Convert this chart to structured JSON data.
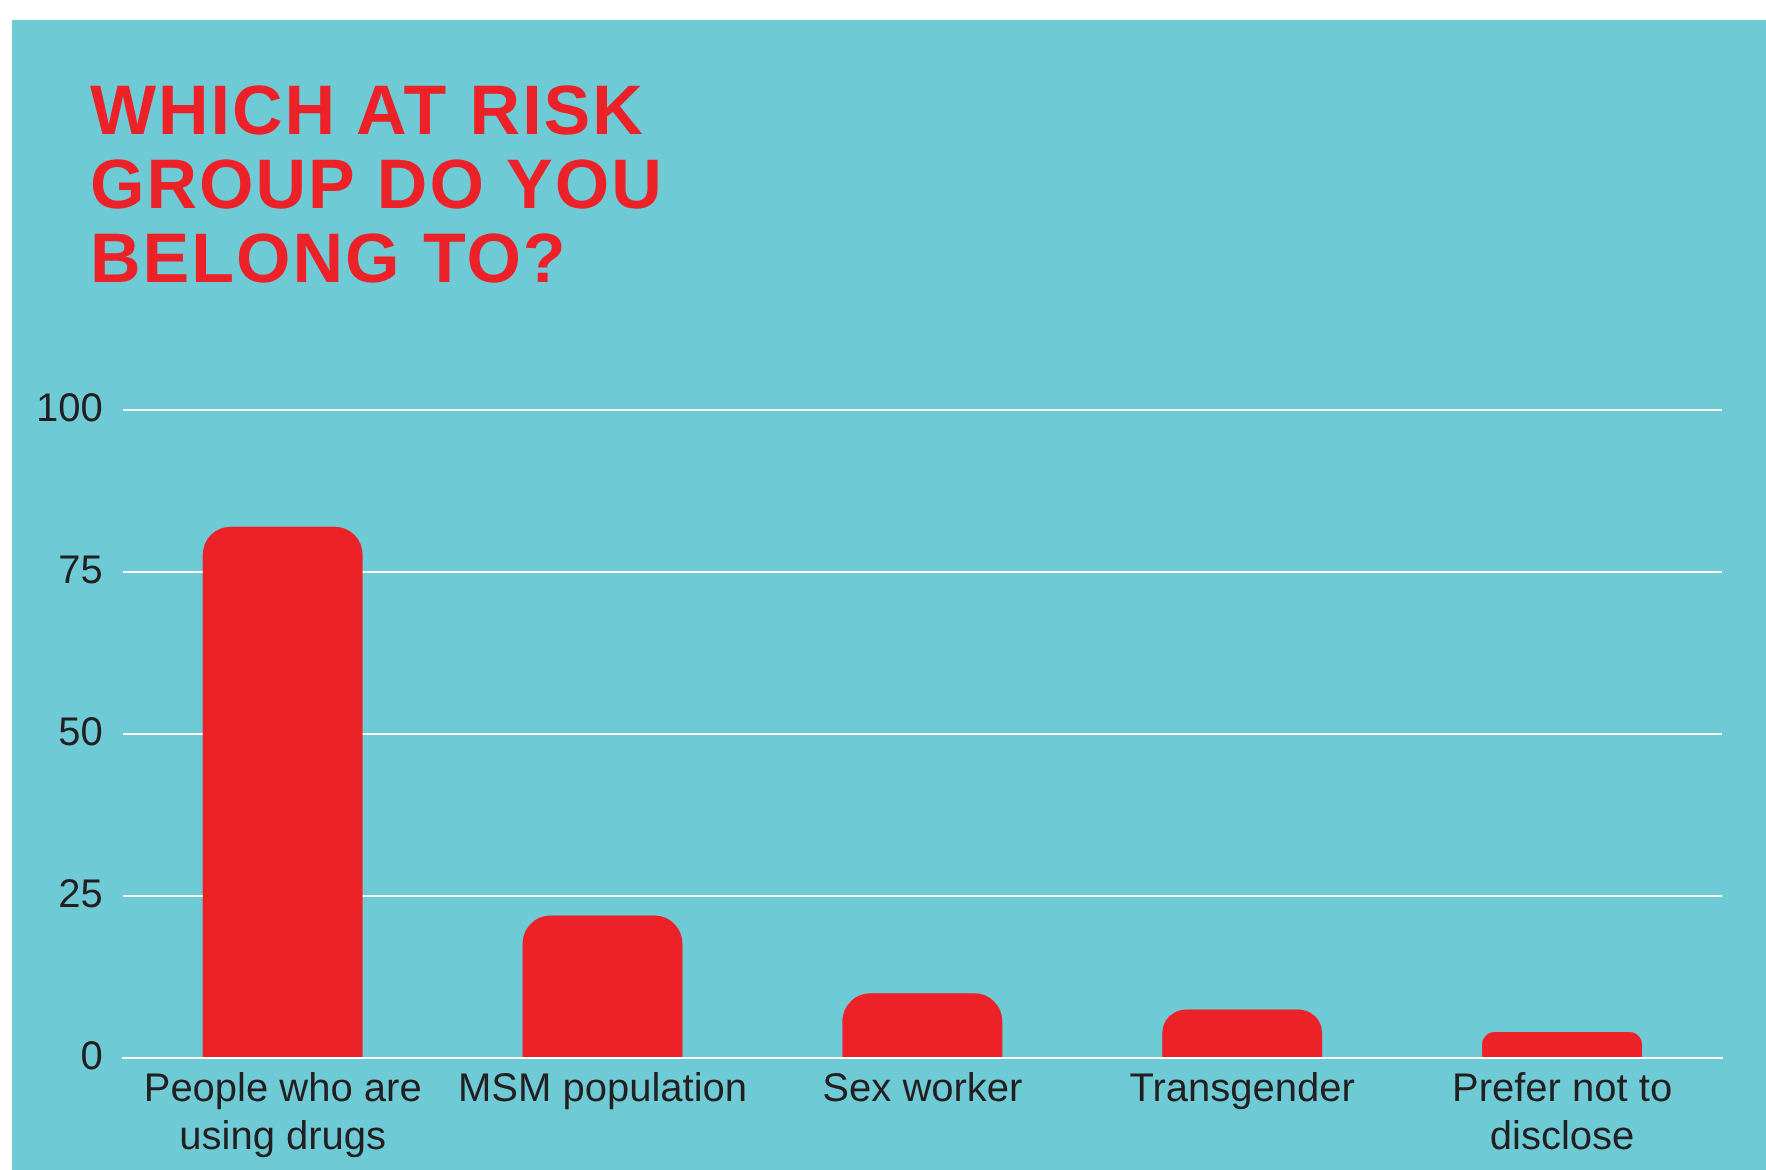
{
  "chart_data": {
    "type": "bar",
    "title": "WHICH AT RISK GROUP DO YOU BELONG TO?",
    "categories": [
      "People who are using drugs",
      "MSM population",
      "Sex worker",
      "Transgender",
      "Prefer not to disclose"
    ],
    "values": [
      82,
      22,
      10,
      7.5,
      4
    ],
    "color": "#ed2228",
    "ylim": [
      0,
      100
    ],
    "yticks": [
      0,
      25,
      50,
      75,
      100
    ],
    "grid": "y"
  }
}
